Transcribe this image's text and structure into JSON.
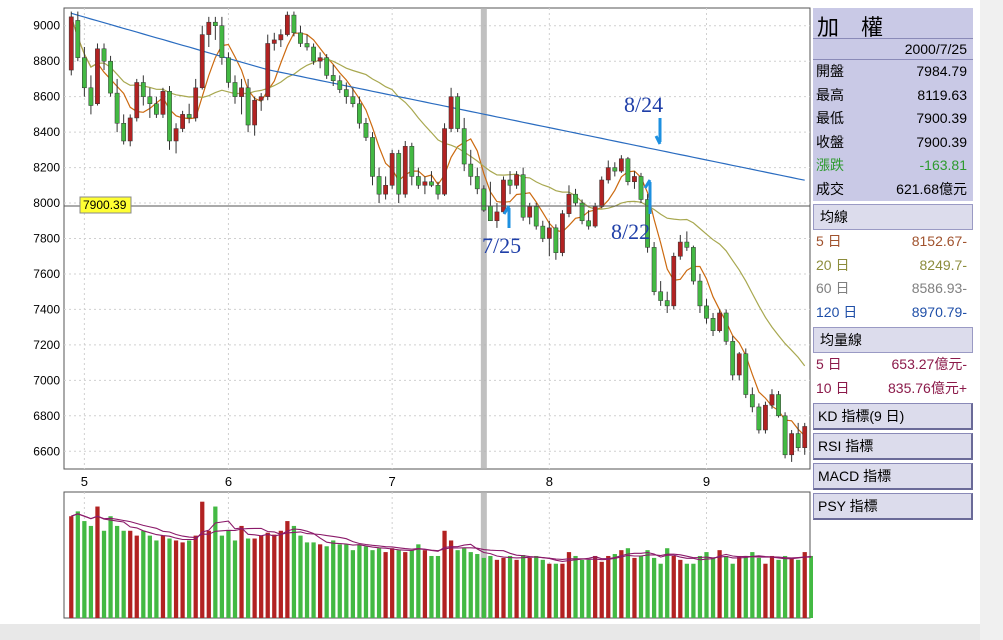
{
  "info_panel": {
    "title": "加 權",
    "date": "2000/7/25",
    "rows": [
      {
        "label": "開盤",
        "value": "7984.79",
        "label_color": "#000000",
        "value_color": "#000000"
      },
      {
        "label": "最高",
        "value": "8119.63",
        "label_color": "#000000",
        "value_color": "#000000"
      },
      {
        "label": "最低",
        "value": "7900.39",
        "label_color": "#000000",
        "value_color": "#000000"
      },
      {
        "label": "收盤",
        "value": "7900.39",
        "label_color": "#000000",
        "value_color": "#000000"
      },
      {
        "label": "漲跌",
        "value": "-163.81",
        "label_color": "#2e9a2e",
        "value_color": "#2e9a2e"
      },
      {
        "label": "成交",
        "value": "621.68億元",
        "label_color": "#000000",
        "value_color": "#000000"
      }
    ],
    "ma_header": "均線",
    "ma_rows": [
      {
        "label": "5 日",
        "value": "8152.67-",
        "color": "#a0522d"
      },
      {
        "label": "20 日",
        "value": "8249.7-",
        "color": "#8c8c3c"
      },
      {
        "label": "60 日",
        "value": "8586.93-",
        "color": "#808080"
      },
      {
        "label": "120 日",
        "value": "8970.79-",
        "color": "#1f4fa8"
      }
    ],
    "vol_header": "均量線",
    "vol_rows": [
      {
        "label": "5 日",
        "value": "653.27億元-",
        "color": "#8b1a4a"
      },
      {
        "label": "10 日",
        "value": "835.76億元+",
        "color": "#8b1a4a"
      }
    ],
    "indicator_buttons": [
      "KD 指標(9 日)",
      "RSI 指標",
      "MACD 指標",
      "PSY 指標"
    ]
  },
  "colors": {
    "up": "#b22222",
    "down": "#43b943",
    "ma5": "#cc6a10",
    "ma20": "#a8a850",
    "ma60": "#2a6cc0",
    "vol_ma5": "#8b1a6a",
    "vol_ma10": "#8b1a6a",
    "crosshair": "#b0b0b0",
    "annotation": "#1f3fa8",
    "arrow": "#1e90e0"
  },
  "chart_data": {
    "type": "candlestick",
    "x_ticks": [
      "5",
      "6",
      "7",
      "8",
      "9"
    ],
    "ylim": [
      6500,
      9100
    ],
    "y_ticks": [
      6600,
      6800,
      7000,
      7200,
      7400,
      7600,
      7800,
      8000,
      8200,
      8400,
      8600,
      8800,
      9000
    ],
    "price_marker": "7900.39",
    "annotations": [
      "7/25",
      "8/22",
      "8/24"
    ],
    "candles": [
      {
        "o": 8750,
        "h": 9080,
        "l": 8720,
        "c": 9050
      },
      {
        "o": 9030,
        "h": 9080,
        "l": 8800,
        "c": 8820
      },
      {
        "o": 8820,
        "h": 8880,
        "l": 8600,
        "c": 8650
      },
      {
        "o": 8650,
        "h": 8720,
        "l": 8500,
        "c": 8550
      },
      {
        "o": 8560,
        "h": 8900,
        "l": 8550,
        "c": 8870
      },
      {
        "o": 8870,
        "h": 8900,
        "l": 8750,
        "c": 8800
      },
      {
        "o": 8800,
        "h": 8830,
        "l": 8600,
        "c": 8620
      },
      {
        "o": 8620,
        "h": 8700,
        "l": 8400,
        "c": 8450
      },
      {
        "o": 8450,
        "h": 8500,
        "l": 8330,
        "c": 8350
      },
      {
        "o": 8350,
        "h": 8500,
        "l": 8320,
        "c": 8480
      },
      {
        "o": 8480,
        "h": 8700,
        "l": 8460,
        "c": 8680
      },
      {
        "o": 8680,
        "h": 8720,
        "l": 8550,
        "c": 8600
      },
      {
        "o": 8600,
        "h": 8650,
        "l": 8480,
        "c": 8560
      },
      {
        "o": 8560,
        "h": 8600,
        "l": 8480,
        "c": 8500
      },
      {
        "o": 8500,
        "h": 8650,
        "l": 8480,
        "c": 8630
      },
      {
        "o": 8630,
        "h": 8660,
        "l": 8300,
        "c": 8350
      },
      {
        "o": 8350,
        "h": 8450,
        "l": 8280,
        "c": 8420
      },
      {
        "o": 8420,
        "h": 8520,
        "l": 8400,
        "c": 8500
      },
      {
        "o": 8500,
        "h": 8560,
        "l": 8450,
        "c": 8480
      },
      {
        "o": 8480,
        "h": 8700,
        "l": 8460,
        "c": 8650
      },
      {
        "o": 8650,
        "h": 9000,
        "l": 8640,
        "c": 8950
      },
      {
        "o": 8950,
        "h": 9050,
        "l": 8880,
        "c": 9020
      },
      {
        "o": 9020,
        "h": 9050,
        "l": 8920,
        "c": 9000
      },
      {
        "o": 9000,
        "h": 9050,
        "l": 8780,
        "c": 8820
      },
      {
        "o": 8820,
        "h": 8850,
        "l": 8650,
        "c": 8680
      },
      {
        "o": 8680,
        "h": 8720,
        "l": 8560,
        "c": 8600
      },
      {
        "o": 8600,
        "h": 8700,
        "l": 8500,
        "c": 8650
      },
      {
        "o": 8650,
        "h": 8700,
        "l": 8400,
        "c": 8440
      },
      {
        "o": 8440,
        "h": 8600,
        "l": 8380,
        "c": 8580
      },
      {
        "o": 8580,
        "h": 8620,
        "l": 8520,
        "c": 8600
      },
      {
        "o": 8600,
        "h": 8950,
        "l": 8580,
        "c": 8900
      },
      {
        "o": 8900,
        "h": 8960,
        "l": 8860,
        "c": 8920
      },
      {
        "o": 8920,
        "h": 8980,
        "l": 8880,
        "c": 8950
      },
      {
        "o": 8950,
        "h": 9080,
        "l": 8940,
        "c": 9060
      },
      {
        "o": 9060,
        "h": 9080,
        "l": 8940,
        "c": 8960
      },
      {
        "o": 8960,
        "h": 9000,
        "l": 8880,
        "c": 8900
      },
      {
        "o": 8900,
        "h": 8950,
        "l": 8860,
        "c": 8880
      },
      {
        "o": 8880,
        "h": 8900,
        "l": 8780,
        "c": 8800
      },
      {
        "o": 8800,
        "h": 8850,
        "l": 8760,
        "c": 8820
      },
      {
        "o": 8820,
        "h": 8840,
        "l": 8700,
        "c": 8720
      },
      {
        "o": 8720,
        "h": 8780,
        "l": 8660,
        "c": 8690
      },
      {
        "o": 8690,
        "h": 8720,
        "l": 8620,
        "c": 8640
      },
      {
        "o": 8640,
        "h": 8680,
        "l": 8560,
        "c": 8600
      },
      {
        "o": 8600,
        "h": 8650,
        "l": 8540,
        "c": 8560
      },
      {
        "o": 8560,
        "h": 8600,
        "l": 8420,
        "c": 8450
      },
      {
        "o": 8450,
        "h": 8480,
        "l": 8350,
        "c": 8370
      },
      {
        "o": 8370,
        "h": 8400,
        "l": 8100,
        "c": 8150
      },
      {
        "o": 8150,
        "h": 8200,
        "l": 8000,
        "c": 8050
      },
      {
        "o": 8050,
        "h": 8150,
        "l": 8020,
        "c": 8100
      },
      {
        "o": 8100,
        "h": 8300,
        "l": 8080,
        "c": 8280
      },
      {
        "o": 8280,
        "h": 8300,
        "l": 8000,
        "c": 8050
      },
      {
        "o": 8050,
        "h": 8350,
        "l": 8030,
        "c": 8320
      },
      {
        "o": 8320,
        "h": 8340,
        "l": 8100,
        "c": 8150
      },
      {
        "o": 8150,
        "h": 8200,
        "l": 8080,
        "c": 8100
      },
      {
        "o": 8100,
        "h": 8150,
        "l": 8050,
        "c": 8120
      },
      {
        "o": 8120,
        "h": 8180,
        "l": 8090,
        "c": 8100
      },
      {
        "o": 8100,
        "h": 8120,
        "l": 8020,
        "c": 8050
      },
      {
        "o": 8050,
        "h": 8450,
        "l": 8040,
        "c": 8420
      },
      {
        "o": 8420,
        "h": 8650,
        "l": 8400,
        "c": 8600
      },
      {
        "o": 8600,
        "h": 8620,
        "l": 8400,
        "c": 8420
      },
      {
        "o": 8420,
        "h": 8480,
        "l": 8180,
        "c": 8220
      },
      {
        "o": 8220,
        "h": 8300,
        "l": 8100,
        "c": 8150
      },
      {
        "o": 8150,
        "h": 8200,
        "l": 8050,
        "c": 8080
      },
      {
        "o": 8080,
        "h": 8100,
        "l": 7950,
        "c": 7960
      },
      {
        "o": 7984,
        "h": 8120,
        "l": 7900,
        "c": 7900
      },
      {
        "o": 7900,
        "h": 8000,
        "l": 7860,
        "c": 7950
      },
      {
        "o": 7950,
        "h": 8150,
        "l": 7940,
        "c": 8130
      },
      {
        "o": 8130,
        "h": 8180,
        "l": 8050,
        "c": 8100
      },
      {
        "o": 8100,
        "h": 8180,
        "l": 8080,
        "c": 8160
      },
      {
        "o": 8160,
        "h": 8200,
        "l": 7900,
        "c": 7920
      },
      {
        "o": 7920,
        "h": 8000,
        "l": 7880,
        "c": 7980
      },
      {
        "o": 7980,
        "h": 8000,
        "l": 7850,
        "c": 7870
      },
      {
        "o": 7870,
        "h": 7900,
        "l": 7780,
        "c": 7800
      },
      {
        "o": 7800,
        "h": 7900,
        "l": 7700,
        "c": 7860
      },
      {
        "o": 7860,
        "h": 7880,
        "l": 7680,
        "c": 7720
      },
      {
        "o": 7720,
        "h": 7960,
        "l": 7700,
        "c": 7940
      },
      {
        "o": 7940,
        "h": 8100,
        "l": 7920,
        "c": 8050
      },
      {
        "o": 8050,
        "h": 8080,
        "l": 7980,
        "c": 8000
      },
      {
        "o": 8000,
        "h": 8020,
        "l": 7880,
        "c": 7900
      },
      {
        "o": 7900,
        "h": 7960,
        "l": 7850,
        "c": 7870
      },
      {
        "o": 7870,
        "h": 8000,
        "l": 7860,
        "c": 7980
      },
      {
        "o": 7980,
        "h": 8150,
        "l": 7970,
        "c": 8130
      },
      {
        "o": 8130,
        "h": 8240,
        "l": 8110,
        "c": 8200
      },
      {
        "o": 8200,
        "h": 8230,
        "l": 8150,
        "c": 8180
      },
      {
        "o": 8180,
        "h": 8270,
        "l": 8170,
        "c": 8250
      },
      {
        "o": 8250,
        "h": 8260,
        "l": 8100,
        "c": 8120
      },
      {
        "o": 8120,
        "h": 8180,
        "l": 8080,
        "c": 8150
      },
      {
        "o": 8150,
        "h": 8170,
        "l": 8000,
        "c": 8020
      },
      {
        "o": 8020,
        "h": 8050,
        "l": 7720,
        "c": 7750
      },
      {
        "o": 7750,
        "h": 7780,
        "l": 7480,
        "c": 7500
      },
      {
        "o": 7500,
        "h": 7560,
        "l": 7420,
        "c": 7450
      },
      {
        "o": 7450,
        "h": 7500,
        "l": 7380,
        "c": 7420
      },
      {
        "o": 7420,
        "h": 7720,
        "l": 7400,
        "c": 7700
      },
      {
        "o": 7700,
        "h": 7820,
        "l": 7680,
        "c": 7780
      },
      {
        "o": 7780,
        "h": 7840,
        "l": 7730,
        "c": 7750
      },
      {
        "o": 7750,
        "h": 7760,
        "l": 7540,
        "c": 7560
      },
      {
        "o": 7560,
        "h": 7600,
        "l": 7380,
        "c": 7420
      },
      {
        "o": 7420,
        "h": 7460,
        "l": 7320,
        "c": 7350
      },
      {
        "o": 7350,
        "h": 7380,
        "l": 7250,
        "c": 7280
      },
      {
        "o": 7280,
        "h": 7400,
        "l": 7270,
        "c": 7380
      },
      {
        "o": 7380,
        "h": 7400,
        "l": 7200,
        "c": 7220
      },
      {
        "o": 7220,
        "h": 7250,
        "l": 7000,
        "c": 7030
      },
      {
        "o": 7030,
        "h": 7160,
        "l": 7000,
        "c": 7150
      },
      {
        "o": 7150,
        "h": 7180,
        "l": 6900,
        "c": 6920
      },
      {
        "o": 6920,
        "h": 6960,
        "l": 6820,
        "c": 6850
      },
      {
        "o": 6850,
        "h": 6870,
        "l": 6700,
        "c": 6720
      },
      {
        "o": 6720,
        "h": 6880,
        "l": 6700,
        "c": 6860
      },
      {
        "o": 6860,
        "h": 6950,
        "l": 6840,
        "c": 6920
      },
      {
        "o": 6920,
        "h": 6940,
        "l": 6790,
        "c": 6800
      },
      {
        "o": 6800,
        "h": 6820,
        "l": 6560,
        "c": 6580
      },
      {
        "o": 6580,
        "h": 6720,
        "l": 6540,
        "c": 6700
      },
      {
        "o": 6700,
        "h": 6760,
        "l": 6600,
        "c": 6620
      },
      {
        "o": 6620,
        "h": 6760,
        "l": 6580,
        "c": 6740
      }
    ],
    "volumes": [
      1050,
      1100,
      1000,
      950,
      1150,
      900,
      1050,
      950,
      900,
      900,
      850,
      900,
      850,
      800,
      850,
      820,
      800,
      780,
      800,
      850,
      1200,
      900,
      1150,
      850,
      900,
      800,
      950,
      820,
      820,
      850,
      880,
      860,
      900,
      1000,
      950,
      850,
      780,
      780,
      760,
      740,
      800,
      760,
      760,
      700,
      760,
      740,
      700,
      720,
      680,
      720,
      700,
      680,
      700,
      760,
      700,
      640,
      640,
      900,
      800,
      700,
      720,
      680,
      660,
      620,
      640,
      600,
      620,
      640,
      600,
      650,
      620,
      640,
      600,
      560,
      560,
      560,
      680,
      640,
      600,
      600,
      640,
      580,
      640,
      660,
      700,
      720,
      620,
      640,
      700,
      620,
      560,
      720,
      640,
      600,
      560,
      560,
      640,
      680,
      620,
      700,
      640,
      560,
      640,
      640,
      680,
      620,
      560,
      640,
      600,
      640,
      620,
      600,
      680,
      640
    ],
    "vol_ylim": [
      0,
      1300
    ]
  }
}
